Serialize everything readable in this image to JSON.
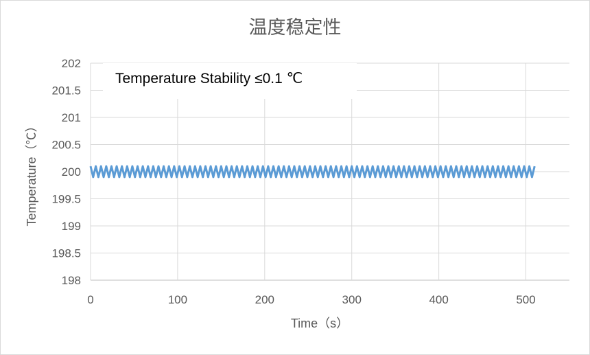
{
  "chart_data": {
    "type": "line",
    "title": "温度稳定性",
    "xlabel": "Time（s）",
    "ylabel": "Temperature（℃）",
    "annotation": "Temperature Stability ≤0.1 ℃",
    "xlim": [
      0,
      550
    ],
    "ylim": [
      198,
      202
    ],
    "x_ticks": [
      0,
      100,
      200,
      300,
      400,
      500
    ],
    "y_ticks": [
      202,
      201.5,
      201,
      200.5,
      200,
      199.5,
      199,
      198.5,
      198
    ],
    "y_tick_labels": [
      "202",
      "201.5",
      "201",
      "200.5",
      "200",
      "199.5",
      "199",
      "198.5",
      "198"
    ],
    "x_tick_labels": [
      "0",
      "100",
      "200",
      "300",
      "400",
      "500"
    ],
    "grid": true,
    "series": [
      {
        "color": "#5b9bd5",
        "x_start": 0,
        "x_end": 510,
        "period_s": 6,
        "mean": 200,
        "amplitude": 0.1
      }
    ]
  }
}
